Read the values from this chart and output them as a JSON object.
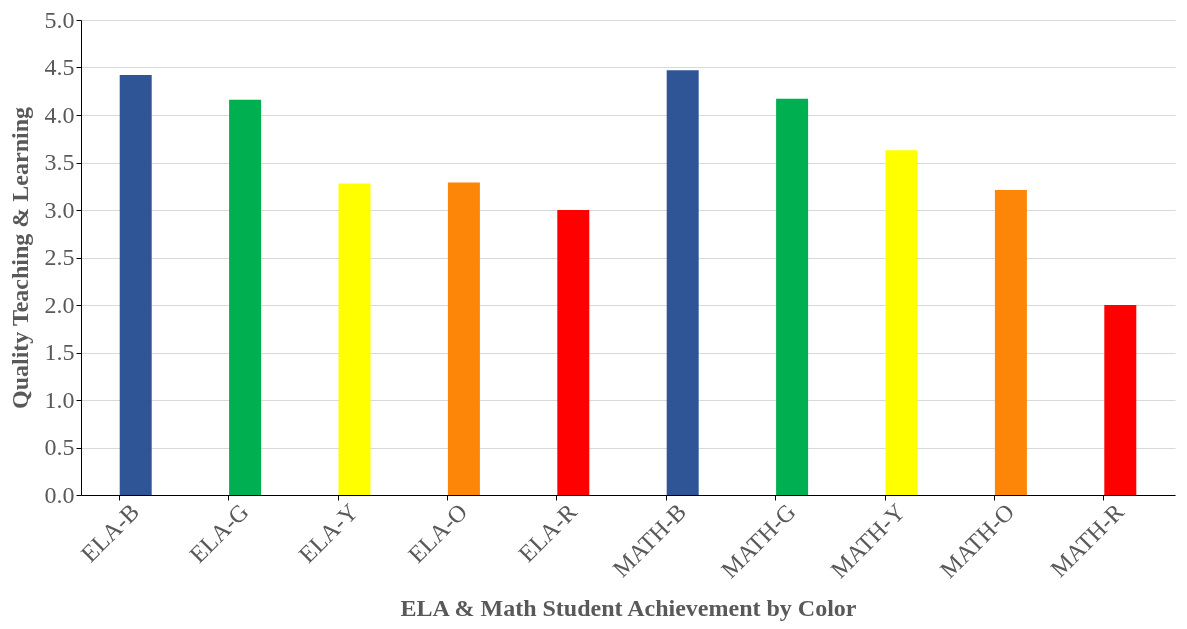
{
  "chart_data": {
    "type": "bar",
    "xlabel": "ELA & Math Student Achievement by Color",
    "ylabel": "Quality Teaching & Learning",
    "categories": [
      "ELA-B",
      "ELA-G",
      "ELA-Y",
      "ELA-O",
      "ELA-R",
      "MATH-B",
      "MATH-G",
      "MATH-Y",
      "MATH-O",
      "MATH-R"
    ],
    "values": [
      4.42,
      4.16,
      3.28,
      3.29,
      3.0,
      4.47,
      4.17,
      3.63,
      3.21,
      2.0
    ],
    "colors": [
      "#2f5597",
      "#00b050",
      "#ffff00",
      "#fd8508",
      "#ff0000",
      "#2f5597",
      "#00b050",
      "#ffff00",
      "#fd8508",
      "#ff0000"
    ],
    "ylim": [
      0,
      5
    ],
    "yticks": [
      {
        "value": 0,
        "label": "0.0"
      },
      {
        "value": 0.5,
        "label": "0.5"
      },
      {
        "value": 1,
        "label": "1.0"
      },
      {
        "value": 1.5,
        "label": "1.5"
      },
      {
        "value": 2,
        "label": "2.0"
      },
      {
        "value": 2.5,
        "label": "2.5"
      },
      {
        "value": 3,
        "label": "3.0"
      },
      {
        "value": 3.5,
        "label": "3.5"
      },
      {
        "value": 4,
        "label": "4.0"
      },
      {
        "value": 4.5,
        "label": "4.5"
      },
      {
        "value": 5,
        "label": "5.0"
      }
    ],
    "grid": "y",
    "legend": false
  }
}
